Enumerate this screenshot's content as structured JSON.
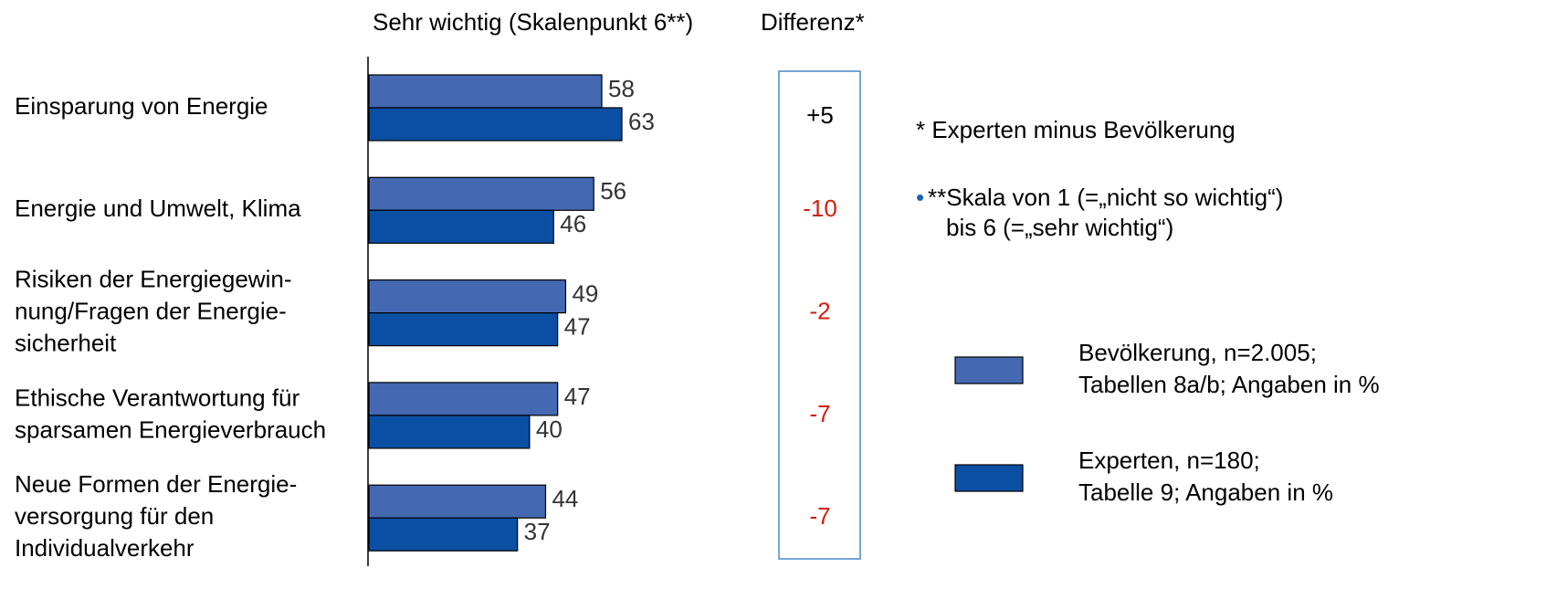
{
  "chart_data": {
    "type": "bar",
    "orientation": "horizontal",
    "title": "Sehr wichtig (Skalenpunkt 6**)",
    "categories": [
      [
        "Einsparung von Energie"
      ],
      [
        "Energie und Umwelt, Klima"
      ],
      [
        "Risiken der Energiegewin-",
        "nung/Fragen der Energie-",
        "sicherheit"
      ],
      [
        "Ethische Verantwortung für",
        "sparsamen Energieverbrauch"
      ],
      [
        "Neue Formen der Energie-",
        "versorgung für den",
        "Individualverkehr"
      ]
    ],
    "series": [
      {
        "name": "Bevölkerung, n=2.005;",
        "legend_note": "Tabellen 8a/b; Angaben in %",
        "color": "#4468b2",
        "values": [
          58,
          56,
          49,
          47,
          44
        ]
      },
      {
        "name": "Experten, n=180;",
        "legend_note": "Tabelle 9; Angaben in %",
        "color": "#0a4fa3",
        "values": [
          63,
          46,
          47,
          40,
          37
        ]
      }
    ],
    "difference": {
      "title": "Differenz*",
      "values": [
        5,
        -10,
        -2,
        -7,
        -7
      ],
      "value_labels": [
        "+5",
        "-10",
        "-2",
        "-7",
        "-7"
      ]
    },
    "notes": [
      "* Experten minus Bevölkerung",
      "**Skala von 1 (=„nicht so wichtig“)",
      "bis 6 (=„sehr wichtig“)"
    ]
  }
}
